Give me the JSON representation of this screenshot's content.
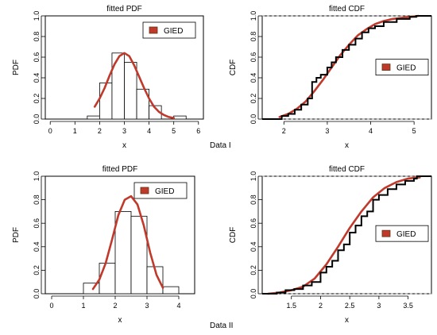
{
  "figure": {
    "colors": {
      "fit": "#c0392b",
      "bar_stroke": "#000000",
      "ecdf": "#000000",
      "grid": "#bbbbbb",
      "legend_swatch": "#c0392b"
    },
    "captions": [
      "Data I",
      "Data II"
    ]
  },
  "chart_data": [
    {
      "type": "bar",
      "title": "fitted PDF",
      "xlabel": "x",
      "ylabel": "PDF",
      "xlim": [
        -0.2,
        6.2
      ],
      "ylim": [
        0,
        1.0
      ],
      "xticks": [
        0,
        1,
        2,
        3,
        4,
        5,
        6
      ],
      "yticks": [
        0.0,
        0.2,
        0.4,
        0.6,
        0.8,
        1.0
      ],
      "legend": {
        "label": "GIED",
        "position": "top-right"
      },
      "histogram": {
        "bin_edges": [
          1.5,
          2.0,
          2.5,
          3.0,
          3.5,
          4.0,
          4.5,
          5.0,
          5.5
        ],
        "density": [
          0.03,
          0.35,
          0.64,
          0.55,
          0.29,
          0.13,
          0.0,
          0.03
        ]
      },
      "series": [
        {
          "name": "GIED",
          "x": [
            1.8,
            2.0,
            2.2,
            2.4,
            2.6,
            2.8,
            3.0,
            3.2,
            3.4,
            3.6,
            3.8,
            4.0,
            4.2,
            4.4,
            4.6,
            4.8,
            5.0
          ],
          "y": [
            0.12,
            0.2,
            0.3,
            0.42,
            0.53,
            0.61,
            0.64,
            0.61,
            0.52,
            0.41,
            0.3,
            0.2,
            0.12,
            0.07,
            0.04,
            0.02,
            0.01
          ]
        }
      ]
    },
    {
      "type": "line",
      "title": "fitted CDF",
      "xlabel": "x",
      "ylabel": "CDF",
      "xlim": [
        1.5,
        5.4
      ],
      "ylim": [
        0,
        1.0
      ],
      "xticks": [
        2,
        3,
        4,
        5
      ],
      "yticks": [
        0.0,
        0.2,
        0.4,
        0.6,
        0.8,
        1.0
      ],
      "legend": {
        "label": "GIED",
        "position": "right"
      },
      "grid_lines_y": [
        0.0,
        1.0
      ],
      "series": [
        {
          "name": "GIED",
          "x": [
            1.9,
            2.1,
            2.3,
            2.5,
            2.7,
            2.9,
            3.1,
            3.3,
            3.5,
            3.7,
            3.9,
            4.1,
            4.3,
            4.5,
            4.7,
            4.9,
            5.1
          ],
          "y": [
            0.02,
            0.05,
            0.1,
            0.17,
            0.27,
            0.38,
            0.5,
            0.62,
            0.72,
            0.81,
            0.87,
            0.92,
            0.95,
            0.97,
            0.98,
            0.99,
            1.0
          ]
        },
        {
          "name": "empirical",
          "x": [
            1.5,
            1.95,
            2.1,
            2.25,
            2.4,
            2.55,
            2.65,
            2.75,
            2.85,
            3.0,
            3.1,
            3.2,
            3.35,
            3.5,
            3.65,
            3.8,
            3.95,
            4.1,
            4.3,
            4.6,
            4.9,
            5.05,
            5.4
          ],
          "y": [
            0.0,
            0.03,
            0.05,
            0.09,
            0.14,
            0.2,
            0.36,
            0.4,
            0.43,
            0.5,
            0.55,
            0.6,
            0.67,
            0.72,
            0.78,
            0.84,
            0.88,
            0.9,
            0.94,
            0.97,
            0.99,
            1.0,
            1.0
          ]
        }
      ]
    },
    {
      "type": "bar",
      "title": "fitted PDF",
      "xlabel": "x",
      "ylabel": "PDF",
      "xlim": [
        -0.2,
        4.5
      ],
      "ylim": [
        0,
        1.0
      ],
      "xticks": [
        0,
        1,
        2,
        3,
        4
      ],
      "yticks": [
        0.0,
        0.2,
        0.4,
        0.6,
        0.8,
        1.0
      ],
      "legend": {
        "label": "GIED",
        "position": "top-right"
      },
      "histogram": {
        "bin_edges": [
          1.0,
          1.5,
          2.0,
          2.5,
          3.0,
          3.5,
          4.0
        ],
        "density": [
          0.09,
          0.26,
          0.7,
          0.66,
          0.23,
          0.06
        ]
      },
      "series": [
        {
          "name": "GIED",
          "x": [
            1.3,
            1.5,
            1.7,
            1.9,
            2.1,
            2.3,
            2.5,
            2.7,
            2.9,
            3.1,
            3.3,
            3.5
          ],
          "y": [
            0.04,
            0.12,
            0.26,
            0.46,
            0.67,
            0.8,
            0.83,
            0.76,
            0.58,
            0.35,
            0.16,
            0.05
          ]
        }
      ]
    },
    {
      "type": "line",
      "title": "fitted CDF",
      "xlabel": "x",
      "ylabel": "CDF",
      "xlim": [
        1.0,
        3.9
      ],
      "ylim": [
        0,
        1.0
      ],
      "xticks": [
        1.5,
        2.0,
        2.5,
        3.0,
        3.5
      ],
      "yticks": [
        0.0,
        0.2,
        0.4,
        0.6,
        0.8,
        1.0
      ],
      "legend": {
        "label": "GIED",
        "position": "right"
      },
      "grid_lines_y": [
        0.0,
        1.0
      ],
      "series": [
        {
          "name": "GIED",
          "x": [
            1.1,
            1.3,
            1.5,
            1.7,
            1.9,
            2.1,
            2.3,
            2.5,
            2.7,
            2.9,
            3.1,
            3.3,
            3.5,
            3.7
          ],
          "y": [
            0.0,
            0.01,
            0.03,
            0.06,
            0.13,
            0.25,
            0.4,
            0.56,
            0.7,
            0.82,
            0.9,
            0.95,
            0.98,
            0.99
          ]
        },
        {
          "name": "empirical",
          "x": [
            1.0,
            1.25,
            1.4,
            1.55,
            1.7,
            1.85,
            2.0,
            2.1,
            2.2,
            2.3,
            2.4,
            2.5,
            2.6,
            2.7,
            2.8,
            2.9,
            3.0,
            3.15,
            3.3,
            3.45,
            3.6,
            3.65,
            3.9
          ],
          "y": [
            0.0,
            0.01,
            0.03,
            0.04,
            0.07,
            0.1,
            0.18,
            0.23,
            0.28,
            0.37,
            0.42,
            0.52,
            0.58,
            0.66,
            0.7,
            0.8,
            0.84,
            0.89,
            0.93,
            0.96,
            0.98,
            1.0,
            1.0
          ]
        }
      ]
    }
  ]
}
